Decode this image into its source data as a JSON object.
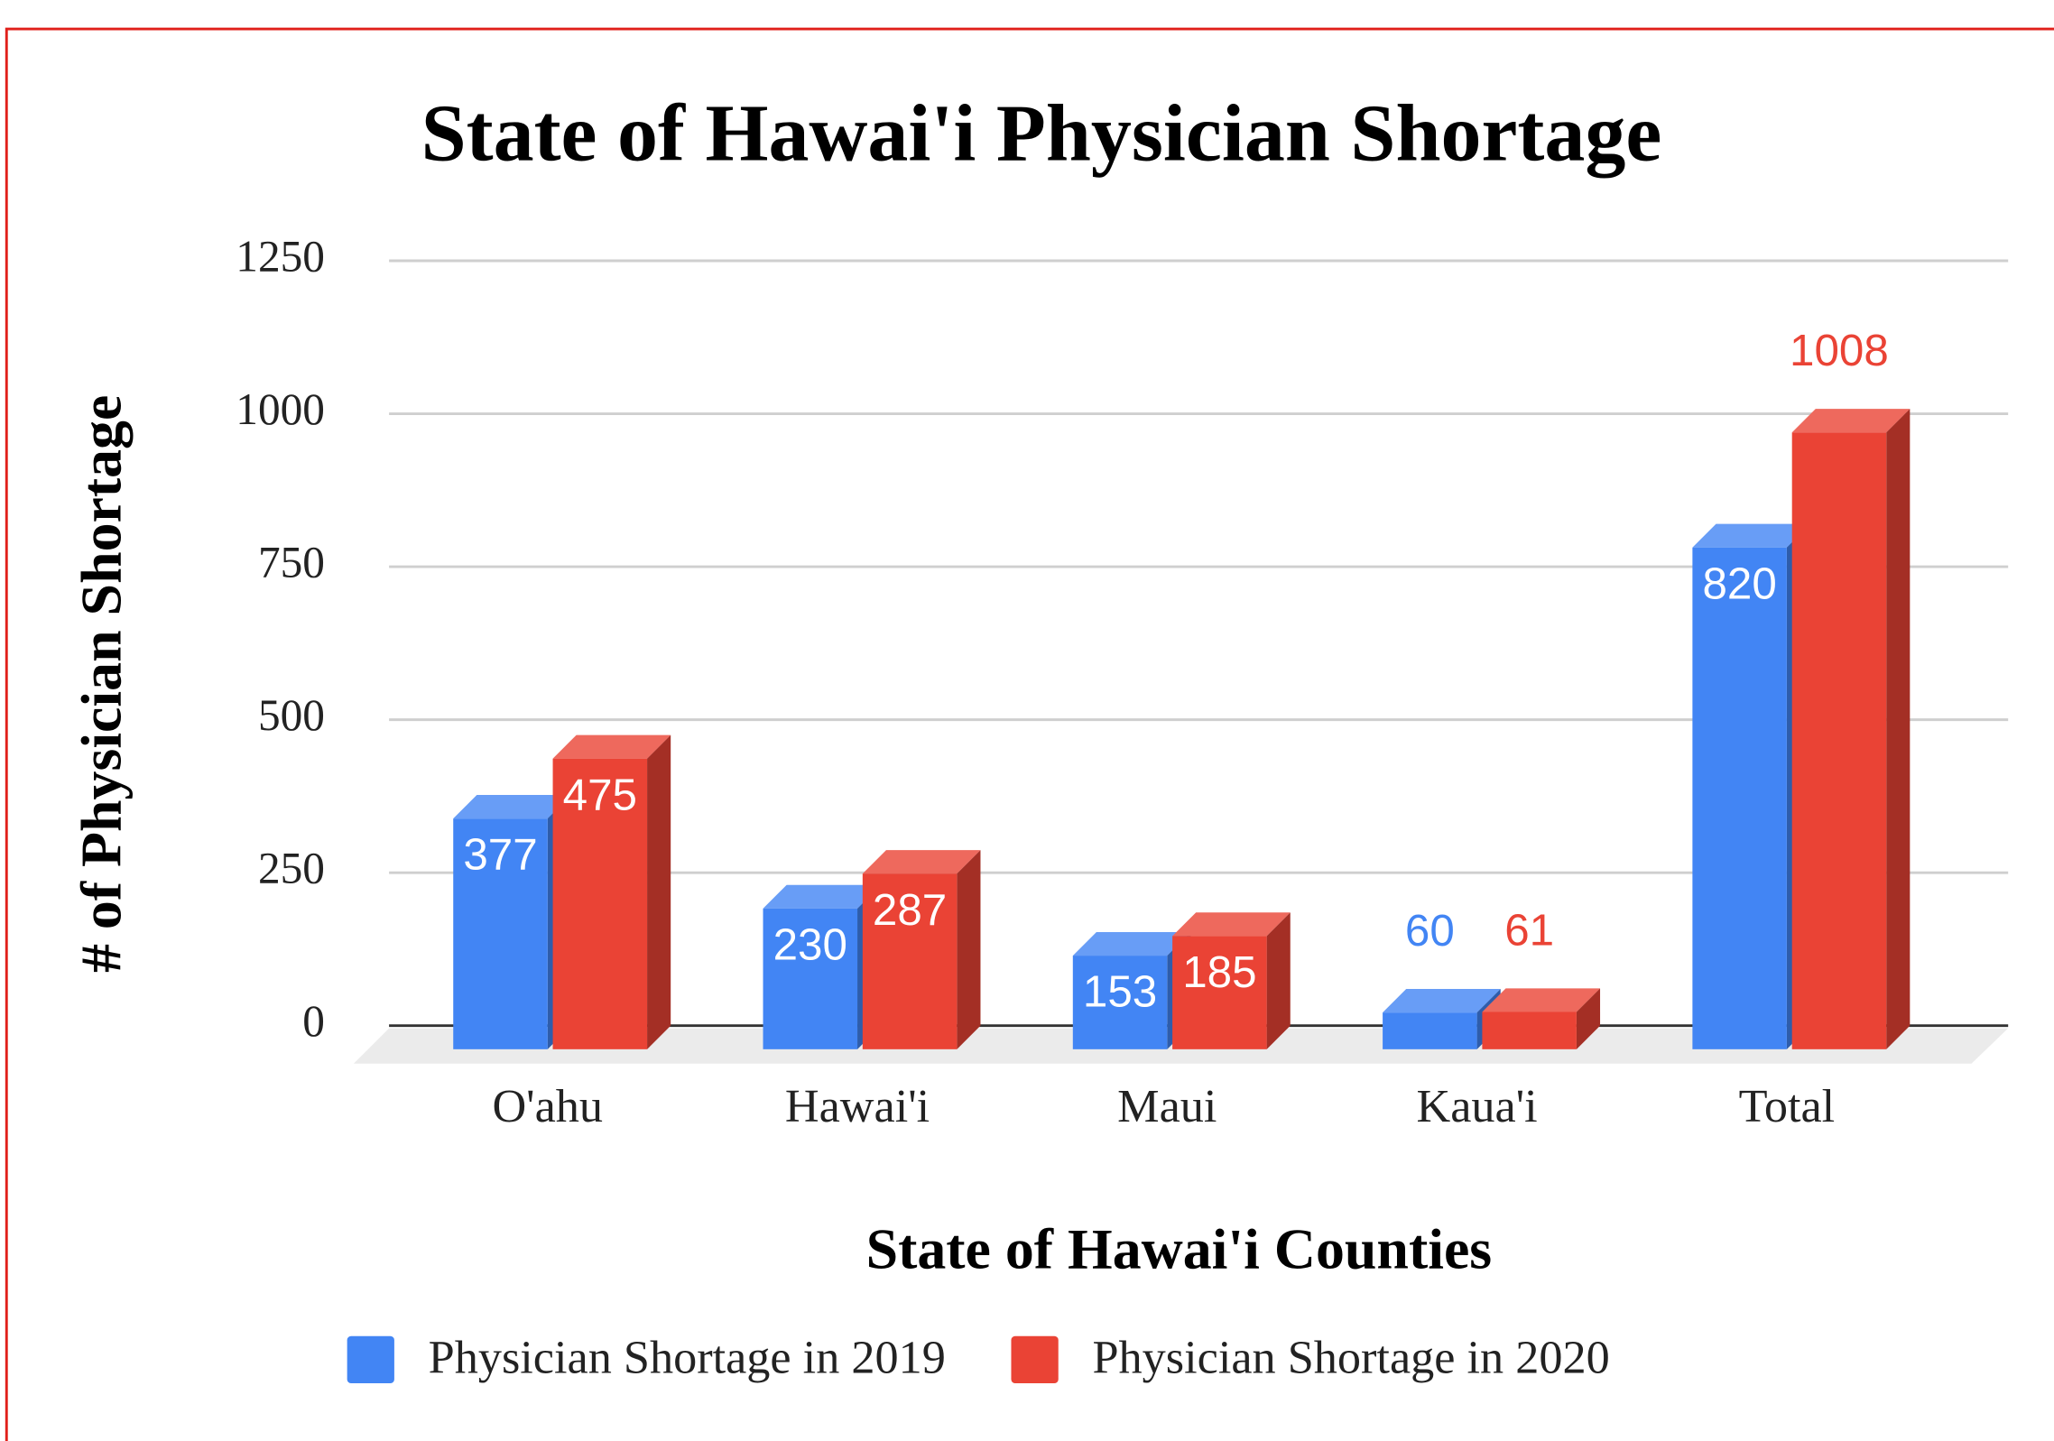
{
  "chart_data": {
    "type": "bar3d",
    "title": "State of Hawai'i Physician Shortage",
    "x_label": "State of Hawai'i Counties",
    "y_label": "# of Physician Shortage",
    "categories": [
      "O'ahu",
      "Hawai'i",
      "Maui",
      "Kaua'i",
      "Total"
    ],
    "series": [
      {
        "name": "Physician Shortage in 2019",
        "color": "#4285f4",
        "values": [
          377,
          230,
          153,
          60,
          820
        ]
      },
      {
        "name": "Physician Shortage in 2020",
        "color": "#ea4335",
        "values": [
          475,
          287,
          185,
          61,
          1008
        ]
      }
    ],
    "ylim": [
      0,
      1250
    ],
    "yticks": [
      0,
      250,
      500,
      750,
      1000,
      1250
    ],
    "grid": true,
    "legend": "bottom"
  }
}
